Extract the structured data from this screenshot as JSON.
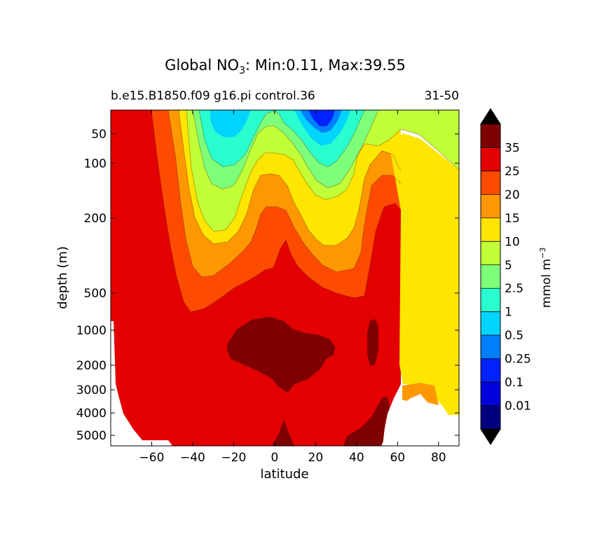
{
  "chart_data": {
    "type": "contour",
    "title_prefix": "Global NO",
    "title_subscript": "3",
    "title_suffix": ": Min:0.11, Max:39.55",
    "subtitle_left": "b.e15.B1850.f09 g16.pi control.36",
    "subtitle_right": "31-50",
    "xlabel": "latitude",
    "ylabel": "depth (m)",
    "xlim": [
      -80,
      90
    ],
    "ylim": [
      5500,
      5
    ],
    "x_ticks": [
      -60,
      -40,
      -20,
      0,
      20,
      40,
      60,
      80
    ],
    "x_tick_labels": [
      "−60",
      "−40",
      "−20",
      "0",
      "20",
      "40",
      "60",
      "80"
    ],
    "y_ticks": [
      50,
      100,
      200,
      500,
      1000,
      2000,
      3000,
      4000,
      5000
    ],
    "y_tick_labels": [
      "50",
      "100",
      "200",
      "500",
      "1000",
      "2000",
      "3000",
      "4000",
      "5000"
    ],
    "min": 0.11,
    "max": 39.55,
    "colorbar": {
      "label_prefix": "mmol m",
      "label_exponent": "−3",
      "levels": [
        0,
        0.01,
        0.1,
        0.25,
        0.5,
        1,
        2.5,
        5,
        10,
        15,
        20,
        25,
        35,
        40
      ],
      "tick_labels": [
        "0.01",
        "0.1",
        "0.25",
        "0.5",
        "1",
        "2.5",
        "5",
        "10",
        "15",
        "20",
        "25",
        "35"
      ],
      "colors": [
        "#00007f",
        "#0000dd",
        "#0022ff",
        "#0080ff",
        "#00d4ff",
        "#29ffce",
        "#7dff7a",
        "#c1ff36",
        "#ffe600",
        "#ff9800",
        "#ff4b00",
        "#e40000",
        "#7f0000"
      ],
      "extend_min_color": "#000000",
      "extend_max_color": "#000000"
    },
    "missing_color": "#ffffff"
  }
}
